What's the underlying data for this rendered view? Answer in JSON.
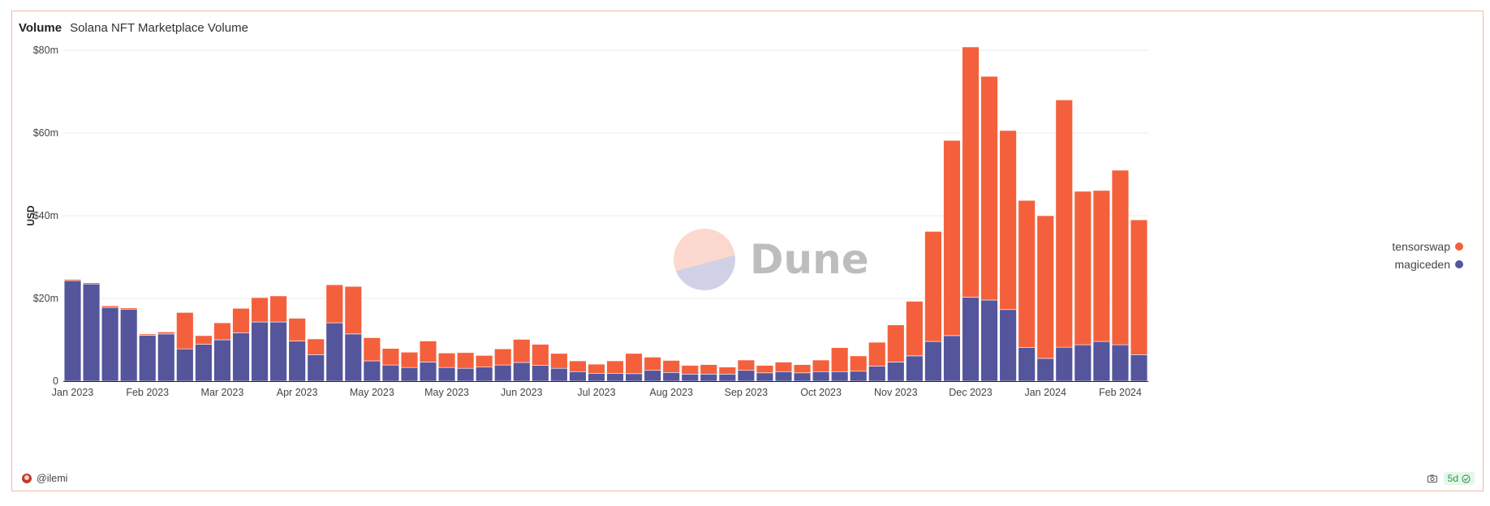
{
  "header": {
    "viz_type": "Volume",
    "title": "Solana NFT Marketplace Volume"
  },
  "watermark": {
    "text": "Dune"
  },
  "footer": {
    "author": "@ilemi",
    "age": "5d"
  },
  "icons": {
    "avatar": "user-avatar",
    "camera": "camera-icon",
    "check": "check-circle-icon"
  },
  "colors": {
    "tensorswap": "#f5603c",
    "magiceden": "#55559c"
  },
  "chart_data": {
    "type": "bar",
    "stacked": true,
    "ylabel": "USD",
    "ylim": [
      0,
      80000000
    ],
    "y_ticks": [
      0,
      20000000,
      40000000,
      60000000,
      80000000
    ],
    "y_tick_labels": [
      "0",
      "$20m",
      "$40m",
      "$60m",
      "$80m"
    ],
    "x_tick_labels": [
      "Jan 2023",
      "Feb 2023",
      "Mar 2023",
      "Apr 2023",
      "May 2023",
      "May 2023",
      "Jun 2023",
      "Jul 2023",
      "Aug 2023",
      "Sep 2023",
      "Oct 2023",
      "Nov 2023",
      "Dec 2023",
      "Jan 2024",
      "Feb 2024"
    ],
    "x_tick_bar_index": [
      0,
      4,
      8,
      12,
      16,
      20,
      24,
      28,
      32,
      36,
      40,
      44,
      48,
      52,
      56
    ],
    "grid": true,
    "legend": "right",
    "categories": [
      "2023-01-02",
      "2023-01-09",
      "2023-01-16",
      "2023-01-23",
      "2023-01-30",
      "2023-02-06",
      "2023-02-13",
      "2023-02-20",
      "2023-02-27",
      "2023-03-06",
      "2023-03-13",
      "2023-03-20",
      "2023-03-27",
      "2023-04-03",
      "2023-04-10",
      "2023-04-17",
      "2023-04-24",
      "2023-05-01",
      "2023-05-08",
      "2023-05-15",
      "2023-05-22",
      "2023-05-29",
      "2023-06-05",
      "2023-06-12",
      "2023-06-19",
      "2023-06-26",
      "2023-07-03",
      "2023-07-10",
      "2023-07-17",
      "2023-07-24",
      "2023-07-31",
      "2023-08-07",
      "2023-08-14",
      "2023-08-21",
      "2023-08-28",
      "2023-09-04",
      "2023-09-11",
      "2023-09-18",
      "2023-09-25",
      "2023-10-02",
      "2023-10-09",
      "2023-10-16",
      "2023-10-23",
      "2023-10-30",
      "2023-11-06",
      "2023-11-13",
      "2023-11-20",
      "2023-11-27",
      "2023-12-04",
      "2023-12-11",
      "2023-12-18",
      "2023-12-25",
      "2024-01-01",
      "2024-01-08",
      "2024-01-15",
      "2024-01-22",
      "2024-01-29",
      "2024-02-05"
    ],
    "series": [
      {
        "name": "magiceden",
        "values": [
          24.3,
          23.5,
          17.8,
          17.4,
          11.1,
          11.4,
          7.8,
          8.9,
          10.0,
          11.7,
          14.3,
          14.3,
          9.7,
          6.4,
          14.1,
          11.4,
          4.9,
          3.9,
          3.3,
          4.6,
          3.3,
          3.1,
          3.4,
          3.9,
          4.5,
          3.8,
          3.1,
          2.3,
          1.9,
          1.9,
          1.8,
          2.6,
          2.1,
          1.7,
          1.7,
          1.7,
          2.6,
          2.0,
          2.3,
          2.0,
          2.3,
          2.3,
          2.4,
          3.6,
          4.6,
          6.1,
          9.6,
          11.0,
          20.3,
          19.6,
          17.3,
          8.1,
          5.5,
          8.2,
          8.8,
          9.6,
          8.8,
          6.4
        ]
      },
      {
        "name": "tensorswap",
        "values": [
          0.3,
          0.3,
          0.4,
          0.3,
          0.3,
          0.5,
          8.8,
          2.1,
          4.1,
          5.9,
          5.9,
          6.3,
          5.5,
          3.8,
          9.2,
          11.5,
          5.6,
          4.0,
          3.7,
          5.1,
          3.5,
          3.8,
          2.8,
          3.9,
          5.6,
          5.1,
          3.6,
          2.6,
          2.2,
          3.0,
          4.9,
          3.2,
          2.9,
          2.1,
          2.3,
          1.7,
          2.5,
          1.8,
          2.3,
          2.0,
          2.8,
          5.8,
          3.7,
          5.8,
          9.0,
          13.2,
          26.6,
          47.2,
          60.5,
          54.1,
          43.3,
          35.6,
          34.5,
          59.8,
          37.1,
          36.5,
          42.2,
          32.6
        ]
      }
    ],
    "units": "millions USD"
  }
}
